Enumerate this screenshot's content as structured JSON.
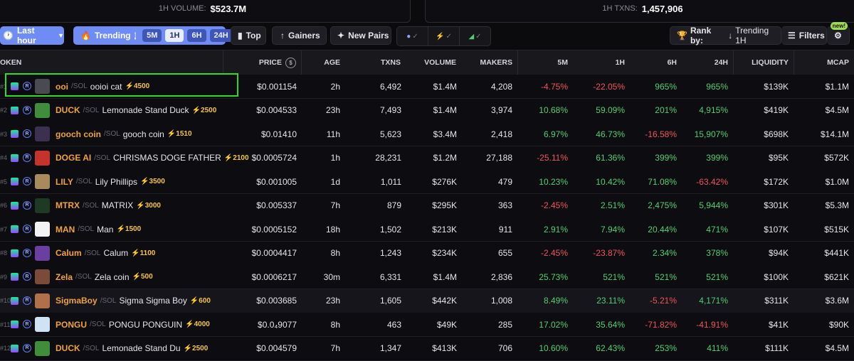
{
  "stats": {
    "volume_label": "1H VOLUME:",
    "volume_value": "$523.7M",
    "txns_label": "1H TXNS:",
    "txns_value": "1,457,906"
  },
  "toolbar": {
    "last_hour": "Last hour",
    "trending": "Trending",
    "timeframes": [
      "5M",
      "1H",
      "6H",
      "24H"
    ],
    "active_timeframe": "1H",
    "top": "Top",
    "gainers": "Gainers",
    "new_pairs": "New Pairs",
    "rank_by_label": "Rank by:",
    "rank_by_value": "Trending 1H",
    "filters": "Filters",
    "new_badge": "new!"
  },
  "columns": {
    "token": "OKEN",
    "price": "PRICE",
    "age": "AGE",
    "txns": "TXNS",
    "volume": "VOLUME",
    "makers": "MAKERS",
    "c5m": "5M",
    "c1h": "1H",
    "c6h": "6H",
    "c24h": "24H",
    "liquidity": "LIQUIDITY",
    "mcap": "MCAP"
  },
  "rows": [
    {
      "rank": "#1",
      "symbol": "ooi",
      "chain": "SOL",
      "name": "ooioi cat",
      "boost": "⚡4500",
      "price": "$0.001154",
      "age": "2h",
      "txns": "6,492",
      "volume": "$1.4M",
      "makers": "4,208",
      "c5m": "-4.75%",
      "c1h": "-22.05%",
      "c6h": "965%",
      "c24h": "965%",
      "liquidity": "$139K",
      "mcap": "$1.1M",
      "avatar_color": "#4a4a52"
    },
    {
      "rank": "#2",
      "symbol": "DUCK",
      "chain": "SOL",
      "name": "Lemonade Stand Duck",
      "boost": "⚡2500",
      "price": "$0.004533",
      "age": "23h",
      "txns": "7,493",
      "volume": "$1.4M",
      "makers": "3,974",
      "c5m": "10.68%",
      "c1h": "59.09%",
      "c6h": "201%",
      "c24h": "4,915%",
      "liquidity": "$419K",
      "mcap": "$4.5M",
      "avatar_color": "#3f8f3a"
    },
    {
      "rank": "#3",
      "symbol": "gooch coin",
      "chain": "SOL",
      "name": "gooch coin",
      "boost": "⚡1510",
      "price": "$0.01410",
      "age": "11h",
      "txns": "5,623",
      "volume": "$3.4M",
      "makers": "2,418",
      "c5m": "6.97%",
      "c1h": "46.73%",
      "c6h": "-16.58%",
      "c24h": "15,907%",
      "liquidity": "$698K",
      "mcap": "$14.1M",
      "avatar_color": "#3b3050"
    },
    {
      "rank": "#4",
      "symbol": "DOGE AI",
      "chain": "SOL",
      "name": "CHRISMAS DOGE FATHER",
      "boost": "⚡2100",
      "price": "$0.0005724",
      "age": "1h",
      "txns": "28,231",
      "volume": "$1.2M",
      "makers": "27,188",
      "c5m": "-25.11%",
      "c1h": "61.36%",
      "c6h": "399%",
      "c24h": "399%",
      "liquidity": "$95K",
      "mcap": "$572K",
      "avatar_color": "#c4342d"
    },
    {
      "rank": "#5",
      "symbol": "LILY",
      "chain": "SOL",
      "name": "Lily Phillips",
      "boost": "⚡3500",
      "price": "$0.001005",
      "age": "1d",
      "txns": "1,011",
      "volume": "$276K",
      "makers": "479",
      "c5m": "10.23%",
      "c1h": "10.42%",
      "c6h": "71.08%",
      "c24h": "-63.42%",
      "liquidity": "$172K",
      "mcap": "$1.0M",
      "avatar_color": "#a98a5a"
    },
    {
      "rank": "#6",
      "symbol": "MTRX",
      "chain": "SOL",
      "name": "MATRIX",
      "boost": "⚡3000",
      "price": "$0.005337",
      "age": "7h",
      "txns": "879",
      "volume": "$295K",
      "makers": "363",
      "c5m": "-2.45%",
      "c1h": "2.51%",
      "c6h": "2,475%",
      "c24h": "5,944%",
      "liquidity": "$301K",
      "mcap": "$5.3M",
      "avatar_color": "#1f3a24"
    },
    {
      "rank": "#7",
      "symbol": "MAN",
      "chain": "SOL",
      "name": "Man",
      "boost": "⚡1500",
      "price": "$0.0005152",
      "age": "18h",
      "txns": "1,502",
      "volume": "$213K",
      "makers": "911",
      "c5m": "2.91%",
      "c1h": "7.94%",
      "c6h": "20.44%",
      "c24h": "471%",
      "liquidity": "$107K",
      "mcap": "$515K",
      "avatar_color": "#f2f2f2"
    },
    {
      "rank": "#8",
      "symbol": "Calum",
      "chain": "SOL",
      "name": "Calum",
      "boost": "⚡1100",
      "price": "$0.0004417",
      "age": "8h",
      "txns": "1,243",
      "volume": "$234K",
      "makers": "655",
      "c5m": "-2.45%",
      "c1h": "-23.87%",
      "c6h": "2.34%",
      "c24h": "378%",
      "liquidity": "$94K",
      "mcap": "$441K",
      "avatar_color": "#6b3fa0"
    },
    {
      "rank": "#9",
      "symbol": "Zela",
      "chain": "SOL",
      "name": "Zela coin",
      "boost": "⚡500",
      "price": "$0.0006217",
      "age": "30m",
      "txns": "6,331",
      "volume": "$1.4M",
      "makers": "2,836",
      "c5m": "25.73%",
      "c1h": "521%",
      "c6h": "521%",
      "c24h": "521%",
      "liquidity": "$100K",
      "mcap": "$621K",
      "avatar_color": "#7a4a3a"
    },
    {
      "rank": "#10",
      "symbol": "SigmaBoy",
      "chain": "SOL",
      "name": "Sigma Sigma Boy",
      "boost": "⚡600",
      "price": "$0.003685",
      "age": "23h",
      "txns": "1,605",
      "volume": "$442K",
      "makers": "1,008",
      "c5m": "8.49%",
      "c1h": "23.11%",
      "c6h": "-5.21%",
      "c24h": "4,171%",
      "liquidity": "$311K",
      "mcap": "$3.6M",
      "avatar_color": "#b0704a"
    },
    {
      "rank": "#11",
      "symbol": "PONGU",
      "chain": "SOL",
      "name": "PONGU PONGUIN",
      "boost": "⚡4000",
      "price": "$0.0₄9077",
      "age": "8h",
      "txns": "463",
      "volume": "$49K",
      "makers": "285",
      "c5m": "17.02%",
      "c1h": "35.64%",
      "c6h": "-71.82%",
      "c24h": "-41.91%",
      "liquidity": "$41K",
      "mcap": "$90K",
      "avatar_color": "#cfe3f5"
    },
    {
      "rank": "#12",
      "symbol": "DUCK",
      "chain": "SOL",
      "name": "Lemonade Stand Du",
      "boost": "⚡2500",
      "price": "$0.004579",
      "age": "7h",
      "txns": "1,347",
      "volume": "$413K",
      "makers": "706",
      "c5m": "10.60%",
      "c1h": "62.43%",
      "c6h": "253%",
      "c24h": "411%",
      "liquidity": "$111K",
      "mcap": "$4.5M",
      "avatar_color": "#3f8f3a"
    }
  ],
  "highlighted_row": 3,
  "colors": {
    "positive": "#4fcf72",
    "negative": "#f0535a",
    "accent": "#6f8cf5",
    "highlight_box": "#2ddb2d"
  }
}
